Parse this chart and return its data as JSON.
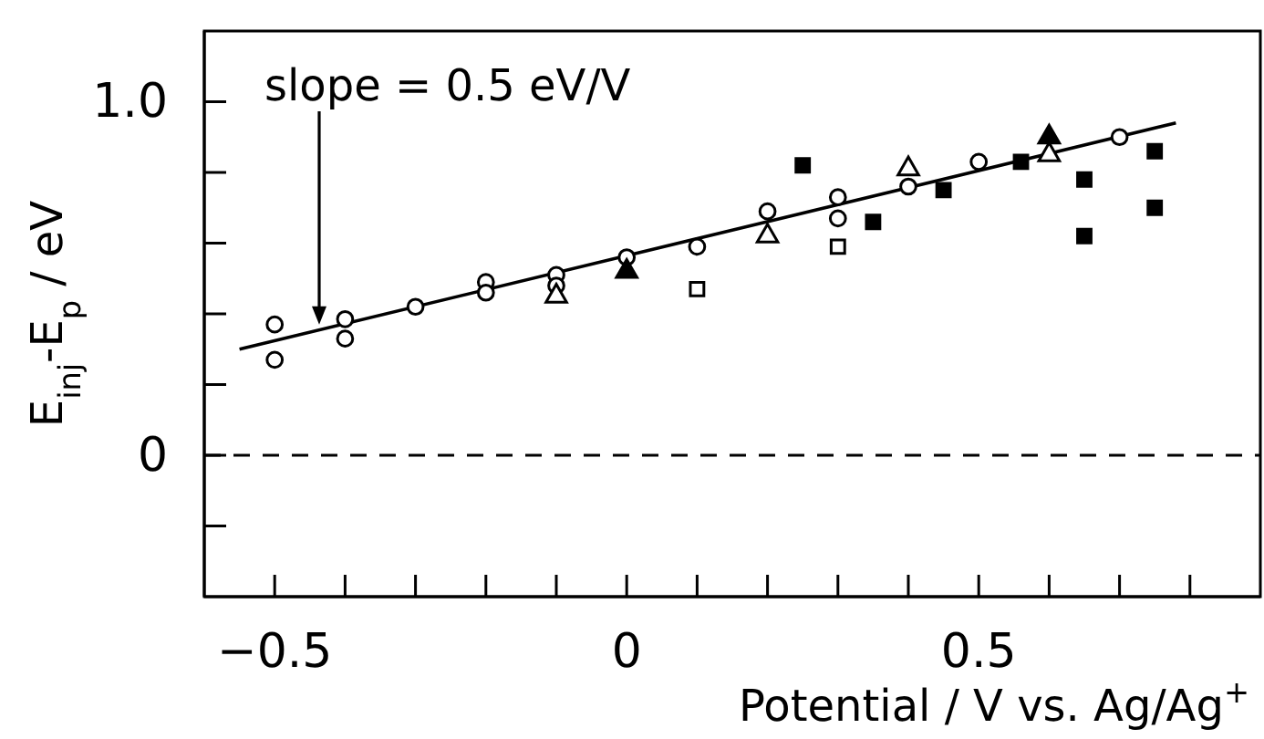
{
  "chart_data": {
    "type": "scatter",
    "xlabel": "Potential / V vs. Ag/Ag$^{+}$",
    "ylabel": "E$_{inj}$-E$_{p}$ / eV",
    "annotations": [
      "slope = 0.5 eV/V"
    ],
    "xlim": [
      -0.6,
      0.9
    ],
    "ylim": [
      -0.4,
      1.2
    ],
    "xticks": [
      {
        "value": -0.5,
        "label": "−0.5"
      },
      {
        "value": -0.4,
        "label": null
      },
      {
        "value": -0.3,
        "label": null
      },
      {
        "value": -0.2,
        "label": null
      },
      {
        "value": -0.1,
        "label": null
      },
      0,
      {
        "value": 0.1,
        "label": null
      },
      {
        "value": 0.2,
        "label": null
      },
      {
        "value": 0.3,
        "label": null
      },
      {
        "value": 0.4,
        "label": null
      },
      0.5,
      {
        "value": 0.6,
        "label": null
      },
      {
        "value": 0.7,
        "label": null
      },
      {
        "value": 0.8,
        "label": null
      }
    ],
    "yticks": [
      {
        "value": -0.2,
        "label": null
      },
      0,
      {
        "value": 0.2,
        "label": null
      },
      {
        "value": 0.4,
        "label": null
      },
      {
        "value": 0.6,
        "label": null
      },
      {
        "value": 0.8,
        "label": null
      },
      {
        "value": 1,
        "label": "1.0"
      }
    ],
    "ref_lines": [
      {
        "axis": "y",
        "value": 0,
        "line_style": "dashed",
        "color": "#000000"
      }
    ],
    "series": [
      {
        "type": "line",
        "color": "#000000",
        "marker": "none",
        "line_style": "solid",
        "x": [
          -0.55,
          0.78
        ],
        "values": [
          0.3,
          0.94
        ]
      },
      {
        "color": "#ffffff",
        "marker": "circle",
        "x": [
          -0.5,
          -0.5,
          -0.4,
          -0.4,
          -0.3,
          -0.2,
          -0.2,
          -0.1,
          -0.1,
          0,
          0.1,
          0.2,
          0.3,
          0.3,
          0.4,
          0.5,
          0.7
        ],
        "values": [
          0.37,
          0.27,
          0.385,
          0.33,
          0.42,
          0.49,
          0.46,
          0.51,
          0.48,
          0.56,
          0.59,
          0.69,
          0.73,
          0.67,
          0.76,
          0.83,
          0.9
        ]
      },
      {
        "color": "#ffffff",
        "marker": "triangle",
        "x": [
          -0.1,
          0.2,
          0.4,
          0.6
        ],
        "values": [
          0.45,
          0.62,
          0.81,
          0.85
        ]
      },
      {
        "color": "#000000",
        "marker": "triangle",
        "x": [
          0,
          0.6
        ],
        "values": [
          0.52,
          0.9
        ]
      },
      {
        "color": "#ffffff",
        "marker": "square",
        "x": [
          0.1,
          0.3
        ],
        "values": [
          0.47,
          0.59
        ]
      },
      {
        "color": "#000000",
        "marker": "square",
        "x": [
          0.25,
          0.35,
          0.45,
          0.56,
          0.65,
          0.65,
          0.75,
          0.75
        ],
        "values": [
          0.82,
          0.66,
          0.75,
          0.83,
          0.78,
          0.62,
          0.86,
          0.7
        ]
      }
    ]
  }
}
